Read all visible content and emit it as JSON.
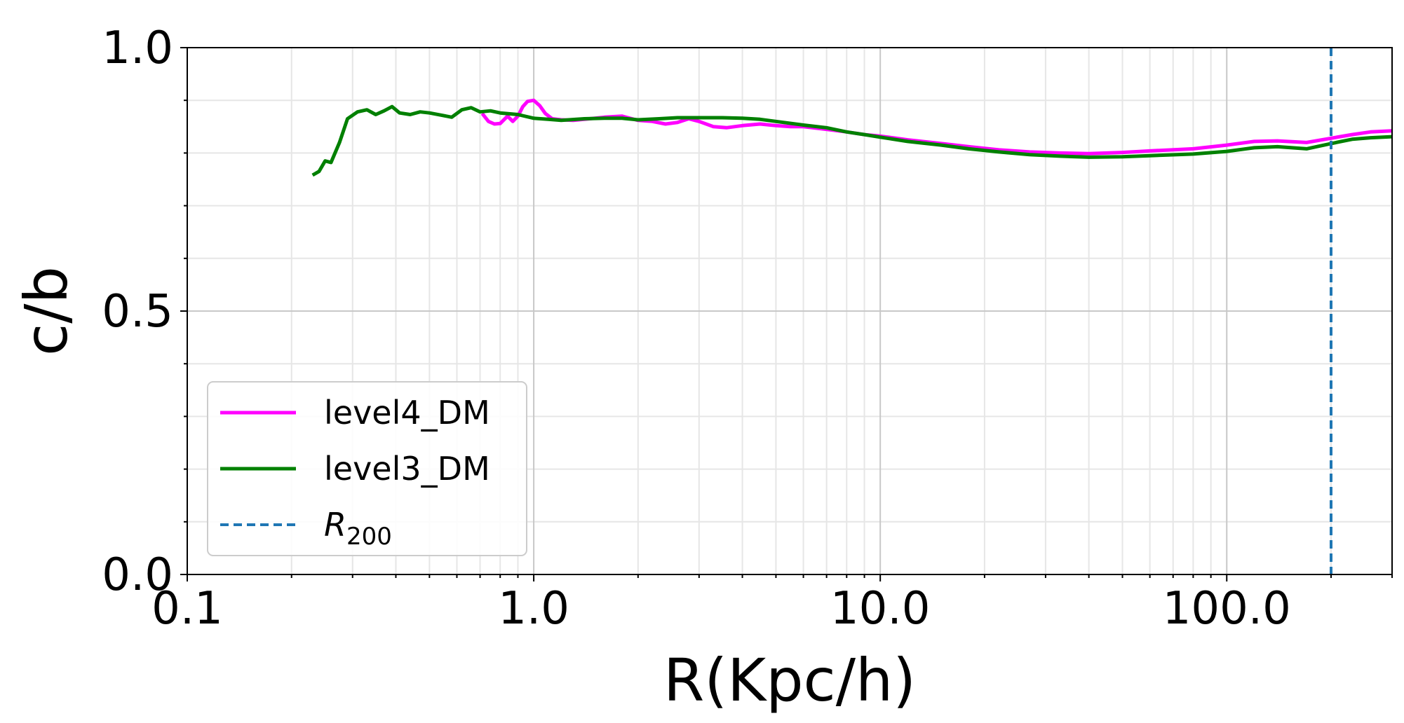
{
  "chart_data": {
    "type": "line",
    "xlabel": "R(Kpc/h)",
    "ylabel": "c/b",
    "xscale": "log",
    "xlim": [
      0.1,
      300
    ],
    "ylim": [
      0.0,
      1.0
    ],
    "x_ticks": [
      0.1,
      1.0,
      10.0,
      100.0
    ],
    "x_tick_labels": [
      "0.1",
      "1.0",
      "10.0",
      "100.0"
    ],
    "y_ticks": [
      0.0,
      0.5,
      1.0
    ],
    "y_tick_labels": [
      "0.0",
      "0.5",
      "1.0"
    ],
    "grid": true,
    "legend_position": "lower-left",
    "series": [
      {
        "name": "level4_DM",
        "color": "#ff00ff",
        "style": "solid",
        "x": [
          0.71,
          0.74,
          0.77,
          0.8,
          0.84,
          0.87,
          0.9,
          0.93,
          0.96,
          1.0,
          1.04,
          1.08,
          1.13,
          1.2,
          1.3,
          1.45,
          1.6,
          1.8,
          2.0,
          2.2,
          2.4,
          2.6,
          2.8,
          3.0,
          3.3,
          3.6,
          4.0,
          4.5,
          5.0,
          5.5,
          6.0,
          7.0,
          8.0,
          9.0,
          10.0,
          12.0,
          15.0,
          18.0,
          22.0,
          27.0,
          33.0,
          40.0,
          50.0,
          60.0,
          80.0,
          100.0,
          120.0,
          140.0,
          170.0,
          200.0,
          230.0,
          260.0,
          300.0
        ],
        "y": [
          0.875,
          0.86,
          0.855,
          0.856,
          0.87,
          0.86,
          0.87,
          0.888,
          0.898,
          0.9,
          0.89,
          0.875,
          0.865,
          0.863,
          0.862,
          0.865,
          0.868,
          0.87,
          0.862,
          0.86,
          0.855,
          0.858,
          0.865,
          0.86,
          0.85,
          0.848,
          0.852,
          0.855,
          0.852,
          0.85,
          0.85,
          0.845,
          0.84,
          0.835,
          0.832,
          0.825,
          0.818,
          0.812,
          0.806,
          0.802,
          0.8,
          0.799,
          0.801,
          0.804,
          0.808,
          0.815,
          0.822,
          0.823,
          0.82,
          0.828,
          0.835,
          0.84,
          0.842
        ]
      },
      {
        "name": "level3_DM",
        "color": "#008000",
        "style": "solid",
        "x": [
          0.23,
          0.24,
          0.25,
          0.26,
          0.275,
          0.29,
          0.31,
          0.33,
          0.35,
          0.37,
          0.39,
          0.41,
          0.44,
          0.47,
          0.5,
          0.54,
          0.58,
          0.62,
          0.66,
          0.7,
          0.75,
          0.8,
          0.9,
          1.0,
          1.1,
          1.2,
          1.4,
          1.6,
          1.8,
          2.0,
          2.3,
          2.6,
          3.0,
          3.5,
          4.0,
          4.5,
          5.0,
          6.0,
          7.0,
          8.0,
          9.0,
          10.0,
          12.0,
          15.0,
          18.0,
          22.0,
          27.0,
          33.0,
          40.0,
          50.0,
          60.0,
          80.0,
          100.0,
          120.0,
          140.0,
          170.0,
          200.0,
          230.0,
          260.0,
          300.0
        ],
        "y": [
          0.758,
          0.765,
          0.785,
          0.782,
          0.82,
          0.865,
          0.878,
          0.882,
          0.873,
          0.88,
          0.888,
          0.876,
          0.873,
          0.878,
          0.876,
          0.872,
          0.868,
          0.882,
          0.886,
          0.878,
          0.88,
          0.876,
          0.873,
          0.866,
          0.864,
          0.862,
          0.865,
          0.866,
          0.866,
          0.863,
          0.865,
          0.867,
          0.867,
          0.867,
          0.866,
          0.864,
          0.86,
          0.853,
          0.848,
          0.84,
          0.835,
          0.83,
          0.822,
          0.815,
          0.808,
          0.802,
          0.797,
          0.794,
          0.792,
          0.793,
          0.795,
          0.798,
          0.803,
          0.81,
          0.812,
          0.808,
          0.818,
          0.826,
          0.829,
          0.831
        ]
      },
      {
        "name": "R_200",
        "color": "#1f77b4",
        "style": "dashed",
        "vline_x": 200.0
      }
    ],
    "legend": [
      {
        "series": 0,
        "label": "level4_DM"
      },
      {
        "series": 1,
        "label": "level3_DM"
      },
      {
        "series": 2,
        "label": "R",
        "subscript": "200"
      }
    ]
  }
}
